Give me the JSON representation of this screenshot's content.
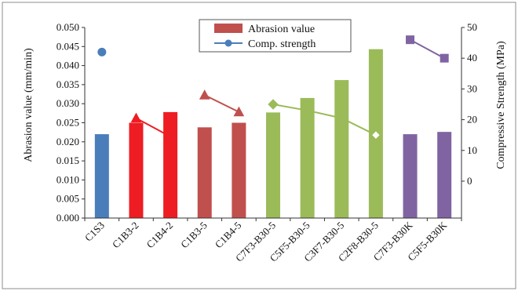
{
  "chart_data": {
    "type": "bar",
    "categories": [
      "C1S3",
      "C1B3-2",
      "C1B4-2",
      "C1B3-5",
      "C1B4-5",
      "C7F3-B30-5",
      "C5F5-B30-5",
      "C3F7-B30-5",
      "C2F8-B30-5",
      "C7F3-B30K",
      "C5F5-B30K"
    ],
    "ylabel": "Abrasion value (mm/min)",
    "y2label": "Compressive Strength (MPa)",
    "ylim": [
      0,
      0.05
    ],
    "yticks": [
      "0.000",
      "0.005",
      "0.010",
      "0.015",
      "0.020",
      "0.025",
      "0.030",
      "0.035",
      "0.040",
      "0.045",
      "0.050"
    ],
    "y2lim": [
      -12,
      50
    ],
    "y2ticks": [
      "0",
      "10",
      "20",
      "30",
      "40",
      "50"
    ],
    "legend": {
      "position": "top-center",
      "entries": [
        "Abrasion value",
        "Comp. strength"
      ]
    },
    "series": [
      {
        "name": "Abrasion value",
        "axis": "left",
        "values": [
          0.022,
          0.025,
          0.0278,
          0.0238,
          0.025,
          0.0277,
          0.0315,
          0.0362,
          0.0443,
          0.022,
          0.0226
        ]
      },
      {
        "name": "Comp. strength",
        "axis": "right",
        "values": [
          42,
          20.5,
          14.5,
          28,
          22.5,
          25,
          23,
          20.5,
          15,
          46,
          40
        ]
      }
    ],
    "bar_colors": [
      "#4a7ebb",
      "#ee1d23",
      "#ee1d23",
      "#c0504d",
      "#c0504d",
      "#9bbb59",
      "#9bbb59",
      "#9bbb59",
      "#9bbb59",
      "#8064a2",
      "#8064a2"
    ],
    "line_groups": [
      {
        "indices": [
          0
        ],
        "color": "#4a7ebb",
        "marker": "circle"
      },
      {
        "indices": [
          1,
          2
        ],
        "color": "#ee1d23",
        "marker": "triangle"
      },
      {
        "indices": [
          3,
          4
        ],
        "color": "#c0504d",
        "marker": "triangle"
      },
      {
        "indices": [
          5,
          6,
          7,
          8
        ],
        "color": "#9bbb59",
        "marker": "diamond"
      },
      {
        "indices": [
          9,
          10
        ],
        "color": "#8064a2",
        "marker": "square"
      }
    ],
    "legend_colors": {
      "bar": "#c0504d",
      "line": "#4a7ebb"
    },
    "grid": false
  }
}
